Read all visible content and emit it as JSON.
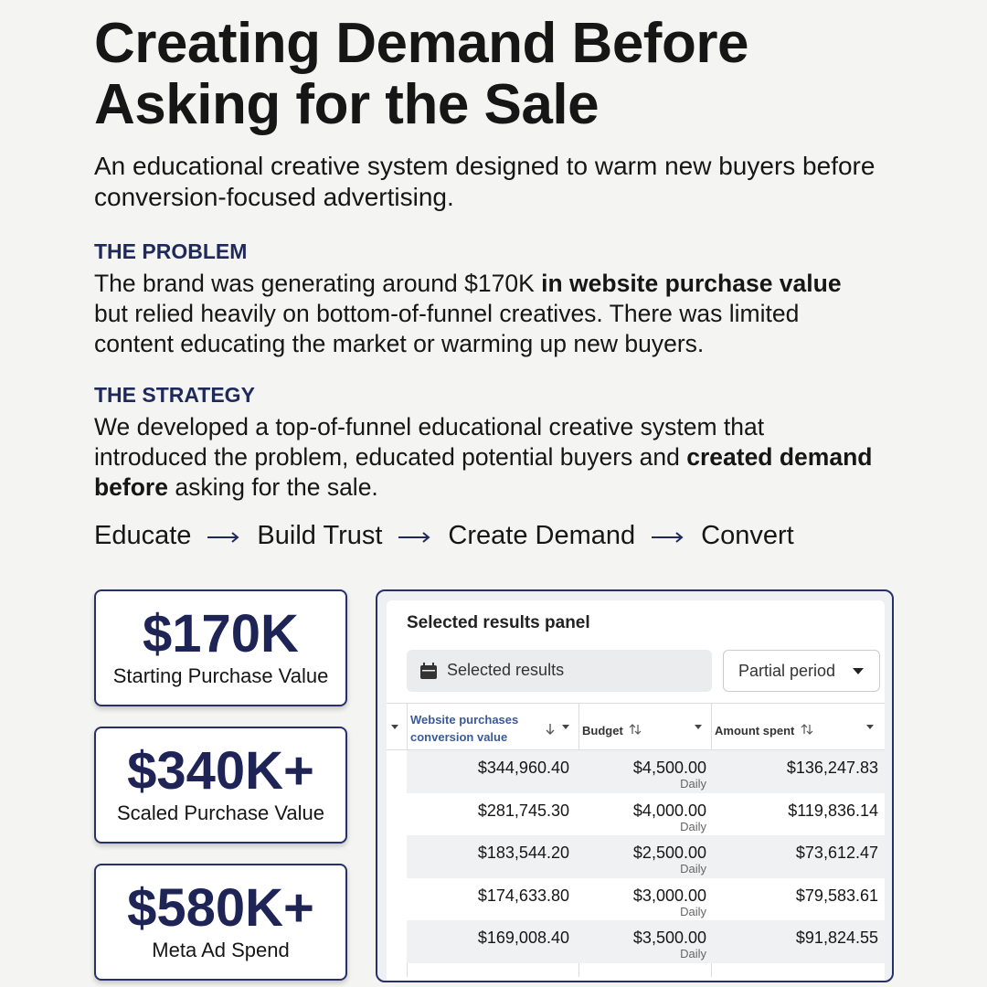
{
  "header": {
    "title_lines": [
      "Creating Demand Before",
      "Asking for the Sale"
    ],
    "subtitle": "An educational creative system designed to warm new buyers before conversion-focused advertising."
  },
  "problem": {
    "heading": "THE PROBLEM",
    "segments": [
      {
        "text": "The brand was generating around $170K ",
        "bold": false
      },
      {
        "text": "in website purchase value",
        "bold": true
      },
      {
        "text": " but relied heavily on bottom-of-funnel creatives. There was limited content educating the market or warming up new buyers.",
        "bold": false
      }
    ]
  },
  "strategy": {
    "heading": "THE STRATEGY",
    "segments": [
      {
        "text": "We developed a top-of-funnel educational creative system that introduced the problem, educated potential buyers and ",
        "bold": false
      },
      {
        "text": "created demand before",
        "bold": true
      },
      {
        "text": " asking for the sale.",
        "bold": false
      }
    ]
  },
  "flow": [
    "Educate",
    "Build Trust",
    "Create Demand",
    "Convert"
  ],
  "stats": [
    {
      "value": "$170K",
      "label": "Starting Purchase Value"
    },
    {
      "value": "$340K+",
      "label": "Scaled Purchase Value"
    },
    {
      "value": "$580K+",
      "label": "Meta Ad Spend"
    }
  ],
  "panel": {
    "title": "Selected results panel",
    "selector": "Selected results",
    "period": "Partial period",
    "columns": [
      "Website purchases conversion value",
      "Budget",
      "Amount spent"
    ],
    "rows": [
      {
        "value": "$344,960.40",
        "budget": "$4,500.00",
        "budget_period": "Daily",
        "spent": "$136,247.83"
      },
      {
        "value": "$281,745.30",
        "budget": "$4,000.00",
        "budget_period": "Daily",
        "spent": "$119,836.14"
      },
      {
        "value": "$183,544.20",
        "budget": "$2,500.00",
        "budget_period": "Daily",
        "spent": "$73,612.47"
      },
      {
        "value": "$174,633.80",
        "budget": "$3,000.00",
        "budget_period": "Daily",
        "spent": "$79,583.61"
      },
      {
        "value": "$169,008.40",
        "budget": "$3,500.00",
        "budget_period": "Daily",
        "spent": "$91,824.55"
      }
    ]
  }
}
